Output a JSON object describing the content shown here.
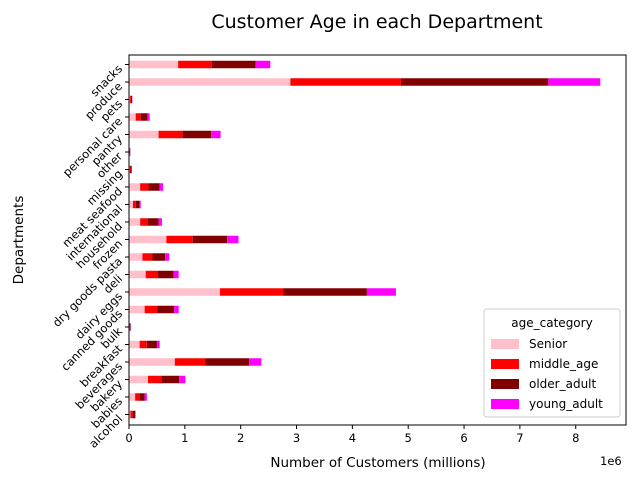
{
  "chart_data": {
    "type": "bar",
    "orientation": "horizontal",
    "stacked": true,
    "title": "Customer Age in each Department",
    "xlabel": "Number of Customers (millions)",
    "ylabel": "Departments",
    "x_offset_label": "1e6",
    "xlim": [
      0,
      8900000
    ],
    "x_ticks": [
      0,
      1000000,
      2000000,
      3000000,
      4000000,
      5000000,
      6000000,
      7000000,
      8000000
    ],
    "x_tick_labels": [
      "0",
      "1",
      "2",
      "3",
      "4",
      "5",
      "6",
      "7",
      "8"
    ],
    "categories": [
      "alcohol",
      "babies",
      "bakery",
      "beverages",
      "breakfast",
      "bulk",
      "canned goods",
      "dairy eggs",
      "deli",
      "dry goods pasta",
      "frozen",
      "household",
      "international",
      "meat seafood",
      "missing",
      "other",
      "pantry",
      "personal care",
      "pets",
      "produce",
      "snacks"
    ],
    "series": [
      {
        "name": "Senior",
        "color": "#ffc0cb",
        "values": [
          25000,
          110000,
          340000,
          820000,
          190000,
          10000,
          280000,
          1630000,
          300000,
          240000,
          670000,
          200000,
          70000,
          200000,
          15000,
          8000,
          530000,
          120000,
          20000,
          2890000,
          880000
        ]
      },
      {
        "name": "middle_age",
        "color": "#ff0000",
        "values": [
          40000,
          80000,
          240000,
          550000,
          130000,
          7000,
          230000,
          1130000,
          220000,
          180000,
          470000,
          140000,
          50000,
          150000,
          12000,
          6000,
          430000,
          90000,
          16000,
          1980000,
          600000
        ]
      },
      {
        "name": "older_adult",
        "color": "#800000",
        "values": [
          45000,
          90000,
          320000,
          780000,
          180000,
          10000,
          300000,
          1500000,
          280000,
          230000,
          620000,
          190000,
          70000,
          200000,
          18000,
          8000,
          510000,
          120000,
          20000,
          2640000,
          790000
        ]
      },
      {
        "name": "young_adult",
        "color": "#ff00ff",
        "values": [
          10000,
          40000,
          110000,
          220000,
          50000,
          4000,
          80000,
          520000,
          90000,
          70000,
          200000,
          60000,
          20000,
          60000,
          6000,
          3000,
          170000,
          40000,
          5000,
          930000,
          260000
        ]
      }
    ],
    "legend": {
      "title": "age_category",
      "position": "lower right"
    }
  }
}
